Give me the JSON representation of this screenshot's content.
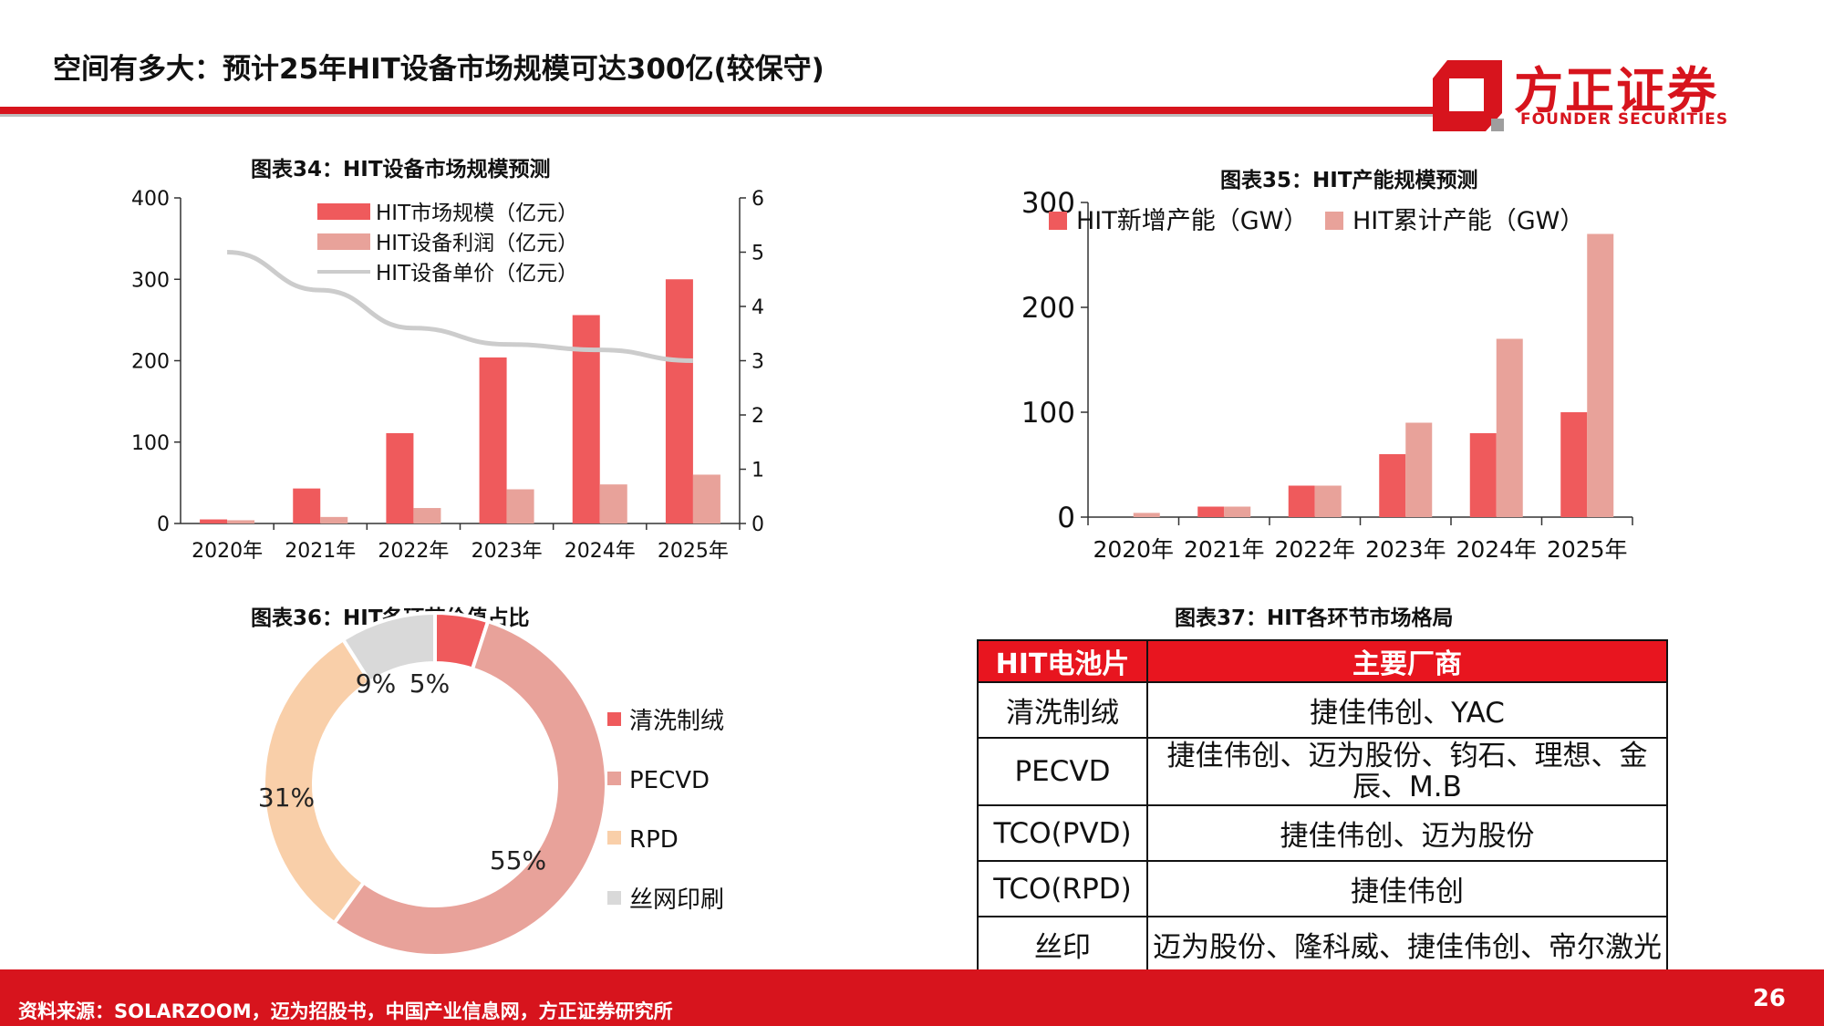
{
  "page": {
    "title": "空间有多大：预计25年HIT设备市场规模可达300亿(较保守)",
    "page_number": "26"
  },
  "logo": {
    "cn": "方正证券",
    "en": "FOUNDER SECURITIES"
  },
  "footer": {
    "source": "资料来源：SOLARZOOM，迈为招股书，中国产业信息网，方正证券研究所"
  },
  "colors": {
    "brand_red": "#d7141d",
    "bar_dark": "#ef5a5c",
    "bar_light": "#e8a29a",
    "line_gray": "#cccccc",
    "rpd": "#f9cfa9",
    "silk": "#d9d9d9"
  },
  "chart_data": [
    {
      "id": "chart34",
      "type": "bar",
      "caption": "图表34：HIT设备市场规模预测",
      "categories": [
        "2020年",
        "2021年",
        "2022年",
        "2023年",
        "2024年",
        "2025年"
      ],
      "series": [
        {
          "name": "HIT市场规模（亿元）",
          "axis": "left",
          "kind": "bar",
          "color": "#ef5a5c",
          "values": [
            5,
            43,
            111,
            204,
            256,
            300
          ]
        },
        {
          "name": "HIT设备利润（亿元）",
          "axis": "left",
          "kind": "bar",
          "color": "#e8a29a",
          "values": [
            4,
            8,
            19,
            42,
            48,
            60
          ]
        },
        {
          "name": "HIT设备单价（亿元）",
          "axis": "right",
          "kind": "line",
          "color": "#cccccc",
          "values": [
            5.0,
            4.3,
            3.6,
            3.3,
            3.2,
            3.0
          ]
        }
      ],
      "y_left": {
        "ticks": [
          "0",
          "100",
          "200",
          "300",
          "400"
        ],
        "range": [
          0,
          400
        ]
      },
      "y_right": {
        "ticks": [
          "0",
          "1",
          "2",
          "3",
          "4",
          "5",
          "6"
        ],
        "range": [
          0,
          6
        ]
      },
      "legend": "top-left"
    },
    {
      "id": "chart35",
      "type": "bar",
      "caption": "图表35：HIT产能规模预测",
      "categories": [
        "2020年",
        "2021年",
        "2022年",
        "2023年",
        "2024年",
        "2025年"
      ],
      "series": [
        {
          "name": "HIT新增产能（GW）",
          "color": "#ef5a5c",
          "values": [
            0,
            10,
            30,
            60,
            80,
            100
          ]
        },
        {
          "name": "HIT累计产能（GW）",
          "color": "#e8a29a",
          "values": [
            4,
            10,
            30,
            90,
            170,
            270
          ]
        }
      ],
      "y_axis": {
        "ticks": [
          "0",
          "100",
          "200",
          "300"
        ],
        "range": [
          0,
          300
        ]
      },
      "legend": "top"
    },
    {
      "id": "chart36",
      "type": "pie",
      "caption": "图表36：HIT各环节价值占比",
      "slices": [
        {
          "name": "清洗制绒",
          "value": 5,
          "label": "5%",
          "color": "#ef5a5c"
        },
        {
          "name": "PECVD",
          "value": 55,
          "label": "55%",
          "color": "#e8a29a"
        },
        {
          "name": "RPD",
          "value": 31,
          "label": "31%",
          "color": "#f9cfa9"
        },
        {
          "name": "丝网印刷",
          "value": 9,
          "label": "9%",
          "color": "#d9d9d9"
        }
      ],
      "legend": "right"
    },
    {
      "id": "table37",
      "type": "table",
      "caption": "图表37：HIT各环节市场格局",
      "header": [
        "HIT电池片",
        "主要厂商"
      ],
      "rows": [
        [
          "清洗制绒",
          "捷佳伟创、YAC"
        ],
        [
          "PECVD",
          "捷佳伟创、迈为股份、钧石、理想、金辰、M.B"
        ],
        [
          "TCO(PVD)",
          "捷佳伟创、迈为股份"
        ],
        [
          "TCO(RPD)",
          "捷佳伟创"
        ],
        [
          "丝印",
          "迈为股份、隆科威、捷佳伟创、帝尔激光"
        ]
      ]
    }
  ]
}
